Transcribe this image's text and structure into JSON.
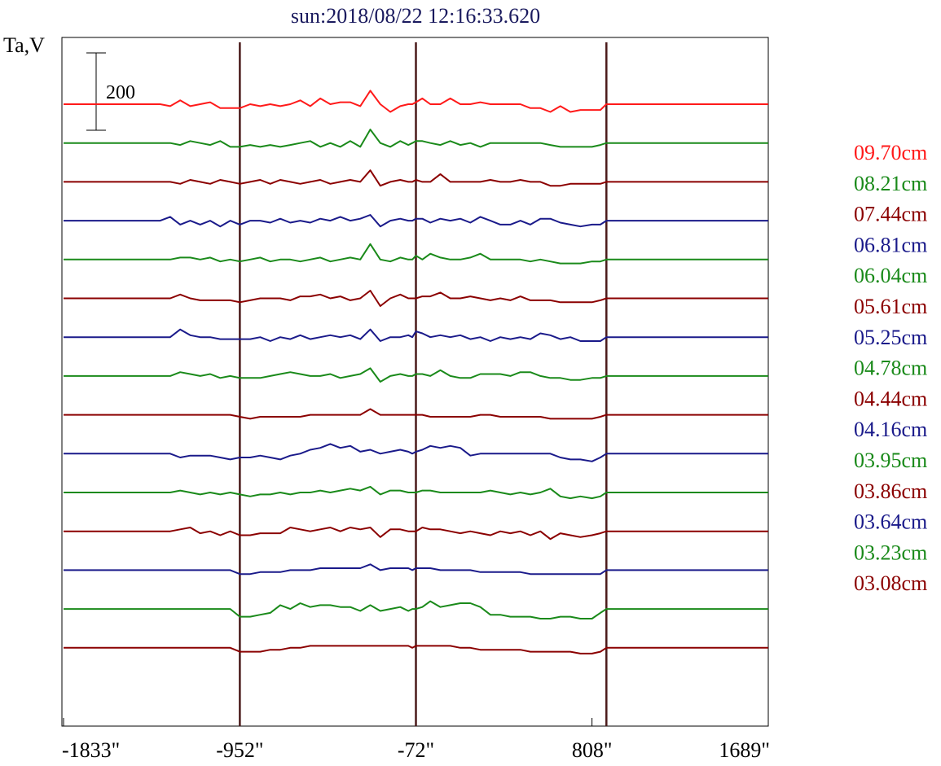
{
  "chart_data": {
    "type": "line",
    "title": "sun:2018/08/22 12:16:33.620",
    "ylabel": "Ta,V",
    "xlabel": "",
    "x_tick_labels": [
      "-1833\"",
      "-952\"",
      "-72\"",
      "808\"",
      "1689\""
    ],
    "x_ticks": [
      -1833,
      -952,
      -72,
      808,
      1689
    ],
    "xlim": [
      -1833,
      1689
    ],
    "limb_markers": [
      -952,
      -72,
      880
    ],
    "scale_bar_label": "200",
    "scale_bar_value": 200,
    "x": [
      -1833,
      -1800,
      -1750,
      -1700,
      -1650,
      -1600,
      -1550,
      -1500,
      -1450,
      -1400,
      -1350,
      -1300,
      -1250,
      -1200,
      -1150,
      -1100,
      -1050,
      -1000,
      -952,
      -900,
      -850,
      -800,
      -750,
      -700,
      -650,
      -600,
      -550,
      -500,
      -450,
      -400,
      -350,
      -300,
      -250,
      -200,
      -150,
      -110,
      -90,
      -72,
      -40,
      0,
      50,
      100,
      150,
      200,
      250,
      300,
      350,
      400,
      450,
      500,
      550,
      600,
      650,
      700,
      750,
      808,
      850,
      880,
      920,
      1000,
      1100,
      1200,
      1300,
      1400,
      1500,
      1600,
      1689
    ],
    "series": [
      {
        "name": "09.70cm",
        "color": "#ff1a1a",
        "values": [
          0,
          0,
          0,
          0,
          0,
          0,
          0,
          0,
          0,
          0,
          0,
          -5,
          10,
          -5,
          0,
          5,
          -10,
          -10,
          -10,
          0,
          -5,
          0,
          -5,
          0,
          10,
          -5,
          15,
          0,
          5,
          5,
          -5,
          35,
          0,
          -20,
          -5,
          0,
          0,
          5,
          15,
          0,
          0,
          15,
          0,
          0,
          5,
          0,
          0,
          0,
          0,
          -10,
          -10,
          -20,
          -5,
          -20,
          -15,
          -15,
          -15,
          0,
          0,
          0,
          0,
          0,
          0,
          0,
          0,
          0,
          0
        ]
      },
      {
        "name": "08.21cm",
        "color": "#1a8a1a",
        "values": [
          0,
          0,
          0,
          0,
          0,
          0,
          0,
          0,
          0,
          0,
          0,
          0,
          -5,
          5,
          0,
          -5,
          5,
          -10,
          -10,
          -5,
          -10,
          -5,
          -10,
          -5,
          0,
          5,
          -10,
          0,
          -10,
          5,
          -10,
          35,
          0,
          -10,
          5,
          -5,
          0,
          5,
          5,
          0,
          -5,
          5,
          -5,
          0,
          -10,
          0,
          0,
          0,
          0,
          0,
          0,
          -5,
          -10,
          -10,
          -10,
          -10,
          -5,
          0,
          0,
          0,
          0,
          0,
          0,
          0,
          0,
          0,
          0
        ]
      },
      {
        "name": "07.44cm",
        "color": "#8b0000",
        "values": [
          0,
          0,
          0,
          0,
          0,
          0,
          0,
          0,
          0,
          0,
          0,
          0,
          -5,
          5,
          0,
          -5,
          5,
          0,
          -5,
          0,
          5,
          -5,
          5,
          0,
          -5,
          0,
          5,
          -5,
          0,
          5,
          0,
          30,
          -10,
          0,
          5,
          0,
          0,
          5,
          0,
          0,
          20,
          0,
          0,
          0,
          0,
          5,
          0,
          0,
          5,
          0,
          0,
          -10,
          -10,
          -5,
          -5,
          -5,
          -5,
          0,
          0,
          0,
          0,
          0,
          0,
          0,
          0,
          0,
          0
        ]
      },
      {
        "name": "06.81cm",
        "color": "#1a1a8a",
        "values": [
          0,
          0,
          0,
          0,
          0,
          0,
          0,
          0,
          0,
          0,
          0,
          10,
          -10,
          0,
          -10,
          0,
          -15,
          0,
          -10,
          0,
          0,
          -5,
          5,
          -5,
          0,
          -5,
          5,
          0,
          10,
          0,
          5,
          15,
          -15,
          0,
          5,
          0,
          0,
          5,
          5,
          -5,
          5,
          0,
          5,
          -5,
          10,
          0,
          -10,
          -10,
          0,
          -10,
          5,
          5,
          -5,
          -10,
          -15,
          -10,
          -10,
          0,
          0,
          0,
          0,
          0,
          0,
          0,
          0,
          0,
          0
        ]
      },
      {
        "name": "06.04cm",
        "color": "#1a8a1a",
        "values": [
          0,
          0,
          0,
          0,
          0,
          0,
          0,
          0,
          0,
          0,
          0,
          0,
          5,
          5,
          0,
          5,
          -5,
          0,
          -5,
          0,
          5,
          -5,
          0,
          0,
          -5,
          0,
          5,
          -5,
          0,
          5,
          0,
          40,
          0,
          -5,
          5,
          0,
          0,
          10,
          0,
          15,
          5,
          0,
          0,
          5,
          15,
          0,
          0,
          0,
          0,
          -5,
          0,
          -5,
          -10,
          -10,
          -10,
          -5,
          -5,
          0,
          0,
          0,
          0,
          0,
          0,
          0,
          0,
          0,
          0
        ]
      },
      {
        "name": "05.61cm",
        "color": "#8b0000",
        "values": [
          0,
          0,
          0,
          0,
          0,
          0,
          0,
          0,
          0,
          0,
          0,
          0,
          10,
          0,
          -5,
          -5,
          -5,
          -5,
          -10,
          -5,
          0,
          0,
          0,
          -5,
          5,
          5,
          10,
          0,
          5,
          -5,
          0,
          20,
          -20,
          0,
          10,
          0,
          0,
          0,
          5,
          5,
          15,
          0,
          0,
          5,
          0,
          -5,
          0,
          -5,
          5,
          -5,
          -5,
          -5,
          -10,
          -10,
          -10,
          -10,
          -5,
          0,
          0,
          0,
          0,
          0,
          0,
          0,
          0,
          0,
          0
        ]
      },
      {
        "name": "05.25cm",
        "color": "#1a1a8a",
        "values": [
          0,
          0,
          0,
          0,
          0,
          0,
          0,
          0,
          0,
          0,
          0,
          0,
          20,
          5,
          0,
          0,
          -5,
          -5,
          -5,
          -5,
          0,
          -10,
          0,
          -5,
          5,
          -5,
          0,
          5,
          0,
          5,
          -5,
          20,
          -10,
          0,
          0,
          5,
          0,
          15,
          10,
          0,
          5,
          0,
          5,
          -5,
          0,
          -10,
          0,
          -5,
          0,
          -5,
          10,
          5,
          -5,
          0,
          -10,
          -10,
          -10,
          0,
          0,
          0,
          0,
          0,
          0,
          0,
          0,
          0,
          0
        ]
      },
      {
        "name": "04.78cm",
        "color": "#1a8a1a",
        "values": [
          0,
          0,
          0,
          0,
          0,
          0,
          0,
          0,
          0,
          0,
          0,
          0,
          10,
          5,
          0,
          5,
          -5,
          0,
          -5,
          -5,
          -5,
          0,
          5,
          10,
          5,
          0,
          0,
          5,
          -5,
          0,
          5,
          20,
          -15,
          0,
          5,
          0,
          0,
          5,
          5,
          0,
          15,
          0,
          -5,
          -5,
          5,
          5,
          5,
          0,
          10,
          10,
          0,
          -5,
          -5,
          -10,
          -10,
          -5,
          -5,
          0,
          0,
          0,
          0,
          0,
          0,
          0,
          0,
          0,
          0
        ]
      },
      {
        "name": "04.44cm",
        "color": "#8b0000",
        "values": [
          0,
          0,
          0,
          0,
          0,
          0,
          0,
          0,
          0,
          0,
          0,
          0,
          0,
          0,
          0,
          0,
          0,
          0,
          -5,
          -10,
          -5,
          -5,
          -5,
          -5,
          -5,
          0,
          0,
          0,
          0,
          0,
          0,
          15,
          0,
          0,
          0,
          0,
          0,
          0,
          0,
          -5,
          -5,
          -5,
          -5,
          -5,
          0,
          0,
          -5,
          -5,
          -5,
          -5,
          -5,
          -10,
          -10,
          -10,
          -10,
          -10,
          -5,
          0,
          0,
          0,
          0,
          0,
          0,
          0,
          0,
          0,
          0
        ]
      },
      {
        "name": "04.16cm",
        "color": "#1a1a8a",
        "values": [
          0,
          0,
          0,
          0,
          0,
          0,
          0,
          0,
          0,
          0,
          0,
          0,
          -10,
          -5,
          -5,
          -5,
          -10,
          -15,
          -10,
          -10,
          -5,
          -10,
          -15,
          -5,
          0,
          10,
          15,
          25,
          15,
          20,
          5,
          10,
          0,
          5,
          10,
          5,
          0,
          5,
          10,
          20,
          15,
          20,
          15,
          -5,
          0,
          0,
          0,
          0,
          0,
          0,
          0,
          0,
          -10,
          -15,
          -15,
          -20,
          -10,
          0,
          0,
          0,
          0,
          0,
          0,
          0,
          0,
          0,
          0
        ]
      },
      {
        "name": "03.95cm",
        "color": "#1a8a1a",
        "values": [
          0,
          0,
          0,
          0,
          0,
          0,
          0,
          0,
          0,
          0,
          0,
          0,
          5,
          0,
          -5,
          0,
          -5,
          0,
          -5,
          -10,
          -5,
          -5,
          0,
          -5,
          0,
          0,
          5,
          0,
          5,
          10,
          5,
          15,
          -5,
          5,
          5,
          0,
          0,
          0,
          5,
          5,
          0,
          0,
          0,
          0,
          0,
          5,
          0,
          -5,
          0,
          -5,
          0,
          10,
          -10,
          -15,
          -10,
          -15,
          -10,
          0,
          0,
          0,
          0,
          0,
          0,
          0,
          0,
          0,
          0
        ]
      },
      {
        "name": "03.86cm",
        "color": "#8b0000",
        "values": [
          0,
          0,
          0,
          0,
          0,
          0,
          0,
          0,
          0,
          0,
          0,
          0,
          5,
          10,
          -5,
          0,
          -10,
          0,
          -10,
          -10,
          -5,
          -5,
          -5,
          10,
          5,
          0,
          5,
          10,
          0,
          10,
          5,
          10,
          -15,
          5,
          5,
          0,
          0,
          0,
          10,
          5,
          5,
          0,
          -5,
          0,
          -5,
          -10,
          0,
          -5,
          0,
          -10,
          0,
          -20,
          -5,
          -10,
          -15,
          -10,
          -5,
          0,
          0,
          0,
          0,
          0,
          0,
          0,
          0,
          0,
          0
        ]
      },
      {
        "name": "03.64cm",
        "color": "#1a1a8a",
        "values": [
          0,
          0,
          0,
          0,
          0,
          0,
          0,
          0,
          0,
          0,
          0,
          0,
          0,
          0,
          0,
          0,
          0,
          0,
          -10,
          -10,
          -5,
          -5,
          -5,
          0,
          0,
          0,
          5,
          5,
          5,
          5,
          5,
          15,
          0,
          5,
          5,
          5,
          0,
          5,
          5,
          5,
          0,
          0,
          0,
          0,
          -5,
          -5,
          -5,
          -5,
          -5,
          -10,
          -10,
          -10,
          -10,
          -10,
          -10,
          -10,
          -10,
          0,
          0,
          0,
          0,
          0,
          0,
          0,
          0,
          0,
          0
        ]
      },
      {
        "name": "03.23cm",
        "color": "#1a8a1a",
        "values": [
          0,
          0,
          0,
          0,
          0,
          0,
          0,
          0,
          0,
          0,
          0,
          0,
          0,
          0,
          0,
          0,
          0,
          0,
          -20,
          -20,
          -15,
          -10,
          10,
          0,
          15,
          5,
          10,
          10,
          5,
          5,
          -5,
          10,
          -5,
          0,
          5,
          -5,
          0,
          0,
          5,
          20,
          5,
          10,
          15,
          15,
          5,
          -15,
          -15,
          -20,
          -20,
          -20,
          -25,
          -25,
          -20,
          -20,
          -25,
          -25,
          -10,
          0,
          0,
          0,
          0,
          0,
          0,
          0,
          0,
          0,
          0
        ]
      },
      {
        "name": "03.08cm",
        "color": "#8b0000",
        "values": [
          0,
          0,
          0,
          0,
          0,
          0,
          0,
          0,
          0,
          0,
          0,
          0,
          0,
          0,
          0,
          0,
          0,
          0,
          -10,
          -10,
          -10,
          -5,
          -5,
          0,
          0,
          5,
          5,
          5,
          5,
          5,
          5,
          5,
          5,
          5,
          5,
          5,
          0,
          5,
          5,
          5,
          5,
          5,
          0,
          0,
          -5,
          -5,
          -5,
          -5,
          -5,
          -10,
          -10,
          -10,
          -10,
          -10,
          -15,
          -15,
          -10,
          0,
          0,
          0,
          0,
          0,
          0,
          0,
          0,
          0,
          0
        ]
      }
    ]
  }
}
